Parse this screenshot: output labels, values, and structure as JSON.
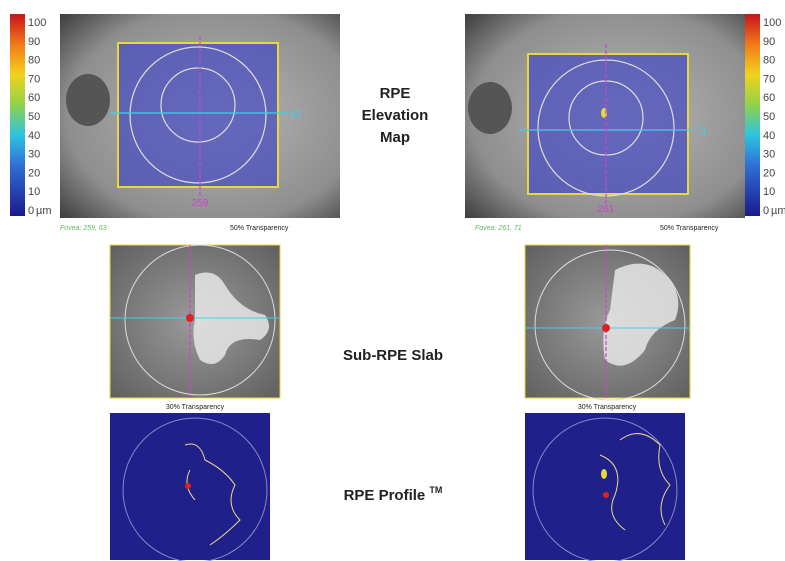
{
  "elevation_map": {
    "label": [
      "RPE",
      "Elevation",
      "Map"
    ],
    "colorbar": {
      "ticks": [
        "100",
        "90",
        "80",
        "70",
        "60",
        "50",
        "40",
        "30",
        "20",
        "10",
        "0"
      ],
      "unit": "µm"
    },
    "panels": [
      {
        "fovea": "Fovea: 259, 63",
        "transparency": "50% Transparency",
        "x_marker": "259",
        "y_marker": "63"
      },
      {
        "fovea": "Fovea: 261, 71",
        "transparency": "50% Transparency",
        "x_marker": "261",
        "y_marker": "71"
      }
    ]
  },
  "sub_rpe_slab": {
    "label": "Sub-RPE Slab",
    "panels": [
      {
        "transparency": "30% Transparency"
      },
      {
        "transparency": "30% Transparency"
      }
    ]
  },
  "rpe_profile": {
    "label": "RPE Profile",
    "superscript": "TM"
  }
}
